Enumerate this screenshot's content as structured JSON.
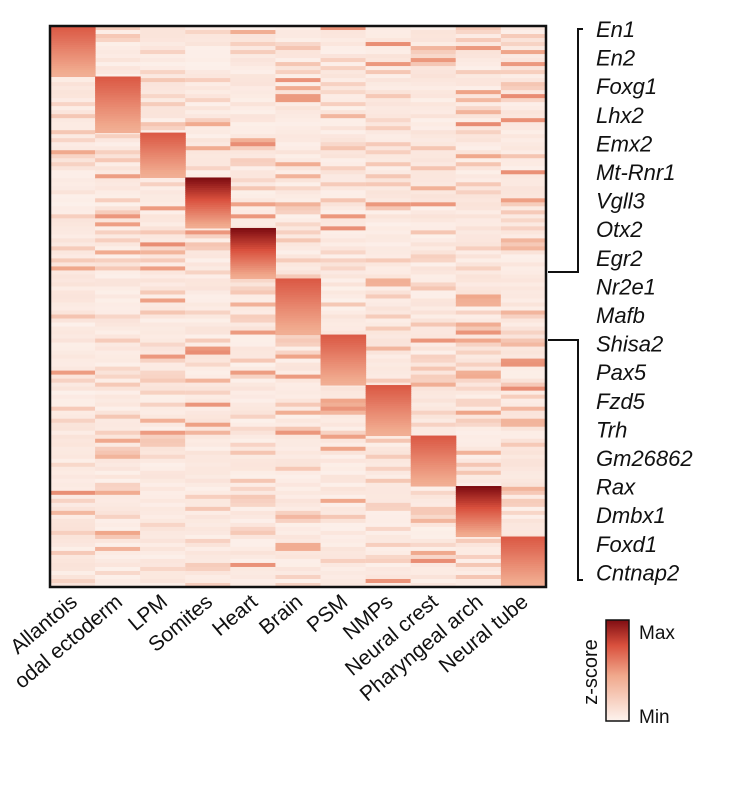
{
  "chart_data": {
    "type": "heatmap",
    "title": "",
    "columns": [
      "Allantois",
      "Surface/epidermal ectoderm",
      "LPM",
      "Somites",
      "Heart",
      "Brain",
      "PSM",
      "NMPs",
      "Neural crest",
      "Pharyngeal arch",
      "Neural tube"
    ],
    "column_display": [
      "Allantois",
      "odal ectoderm",
      "LPM",
      "Somites",
      "Heart",
      "Brain",
      "PSM",
      "NMPs",
      "Neural crest",
      "Pharyngeal arch",
      "Neural tube"
    ],
    "highlighted_column": "Brain",
    "highlight_color": "#b03a2e",
    "gene_labels": [
      "En1",
      "En2",
      "Foxg1",
      "Lhx2",
      "Emx2",
      "Mt-Rnr1",
      "Vgll3",
      "Otx2",
      "Egr2",
      "Nr2e1",
      "Mafb",
      "Shisa2",
      "Pax5",
      "Fzd5",
      "Trh",
      "Gm26862",
      "Rax",
      "Dmbx1",
      "Foxd1",
      "Cntnap2"
    ],
    "gene_groups": [
      {
        "genes": [
          "En1",
          "En2",
          "Foxg1",
          "Lhx2",
          "Emx2",
          "Mt-Rnr1",
          "Vgll3",
          "Otx2",
          "Egr2"
        ],
        "column": "Heart"
      },
      {
        "genes": [
          "Nr2e1",
          "Mafb",
          "Shisa2",
          "Pax5",
          "Fzd5",
          "Trh",
          "Gm26862",
          "Rax",
          "Dmbx1",
          "Foxd1",
          "Cntnap2"
        ],
        "column": "Brain"
      }
    ],
    "marker_blocks_row_fraction": [
      {
        "column": "Allantois",
        "start": 0.0,
        "end": 0.09
      },
      {
        "column": "Surface/epidermal ectoderm",
        "start": 0.09,
        "end": 0.19
      },
      {
        "column": "LPM",
        "start": 0.19,
        "end": 0.27
      },
      {
        "column": "Somites",
        "start": 0.27,
        "end": 0.36
      },
      {
        "column": "Heart",
        "start": 0.36,
        "end": 0.45
      },
      {
        "column": "Brain",
        "start": 0.45,
        "end": 0.55
      },
      {
        "column": "PSM",
        "start": 0.55,
        "end": 0.64
      },
      {
        "column": "NMPs",
        "start": 0.64,
        "end": 0.73
      },
      {
        "column": "Neural crest",
        "start": 0.73,
        "end": 0.82
      },
      {
        "column": "Pharyngeal arch",
        "start": 0.82,
        "end": 0.91
      },
      {
        "column": "Neural tube",
        "start": 0.91,
        "end": 1.0
      }
    ],
    "colorbar": {
      "title": "z-score",
      "max_label": "Max",
      "min_label": "Min",
      "max_color": "#7f0d12",
      "mid_color": "#e8826a",
      "min_color": "#fdf3ee"
    }
  }
}
